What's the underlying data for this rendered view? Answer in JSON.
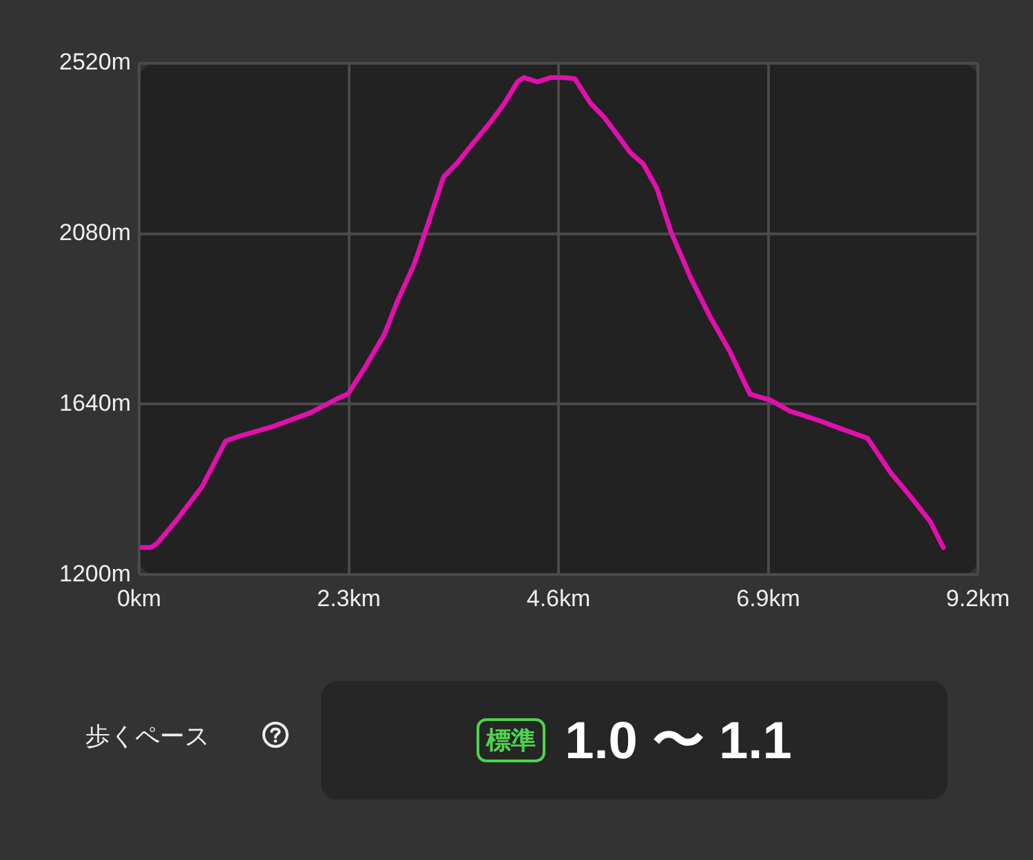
{
  "chart_data": {
    "type": "line",
    "x": [
      0.03,
      0.13,
      0.2,
      0.42,
      0.69,
      0.95,
      1.08,
      1.45,
      1.88,
      2.18,
      2.29,
      2.47,
      2.69,
      2.83,
      3.02,
      3.17,
      3.34,
      3.49,
      3.64,
      3.86,
      4.0,
      4.15,
      4.22,
      4.37,
      4.51,
      4.66,
      4.78,
      4.95,
      5.1,
      5.24,
      5.39,
      5.53,
      5.68,
      5.83,
      6.05,
      6.26,
      6.48,
      6.7,
      6.92,
      7.14,
      7.43,
      7.73,
      7.99,
      8.24,
      8.46,
      8.68,
      8.82
    ],
    "series": [
      {
        "color": "#e20fae",
        "values": [
          1270,
          1270,
          1281,
          1343,
          1427,
          1545,
          1556,
          1581,
          1618,
          1655,
          1666,
          1732,
          1820,
          1904,
          2003,
          2106,
          2227,
          2263,
          2307,
          2370,
          2414,
          2472,
          2483,
          2472,
          2483,
          2483,
          2480,
          2417,
          2381,
          2337,
          2289,
          2260,
          2197,
          2087,
          1966,
          1867,
          1776,
          1666,
          1651,
          1622,
          1600,
          1574,
          1552,
          1464,
          1402,
          1336,
          1270
        ]
      }
    ],
    "xlim": [
      0,
      9.2
    ],
    "xticks": [
      {
        "value": 0,
        "label": "0km"
      },
      {
        "value": 2.3,
        "label": "2.3km"
      },
      {
        "value": 4.6,
        "label": "4.6km"
      },
      {
        "value": 6.9,
        "label": "6.9km"
      },
      {
        "value": 9.2,
        "label": "9.2km"
      }
    ],
    "ylim": [
      1200,
      2520
    ],
    "yticks": [
      {
        "value": 1200,
        "label": "1200m"
      },
      {
        "value": 1640,
        "label": "1640m"
      },
      {
        "value": 2080,
        "label": "2080m"
      },
      {
        "value": 2520,
        "label": "2520m"
      }
    ],
    "grid": true,
    "legend": false,
    "marker": "none",
    "line_style": "solid",
    "annotations": [
      "歩くペース",
      "標準",
      "1.0 〜 1.1"
    ]
  }
}
